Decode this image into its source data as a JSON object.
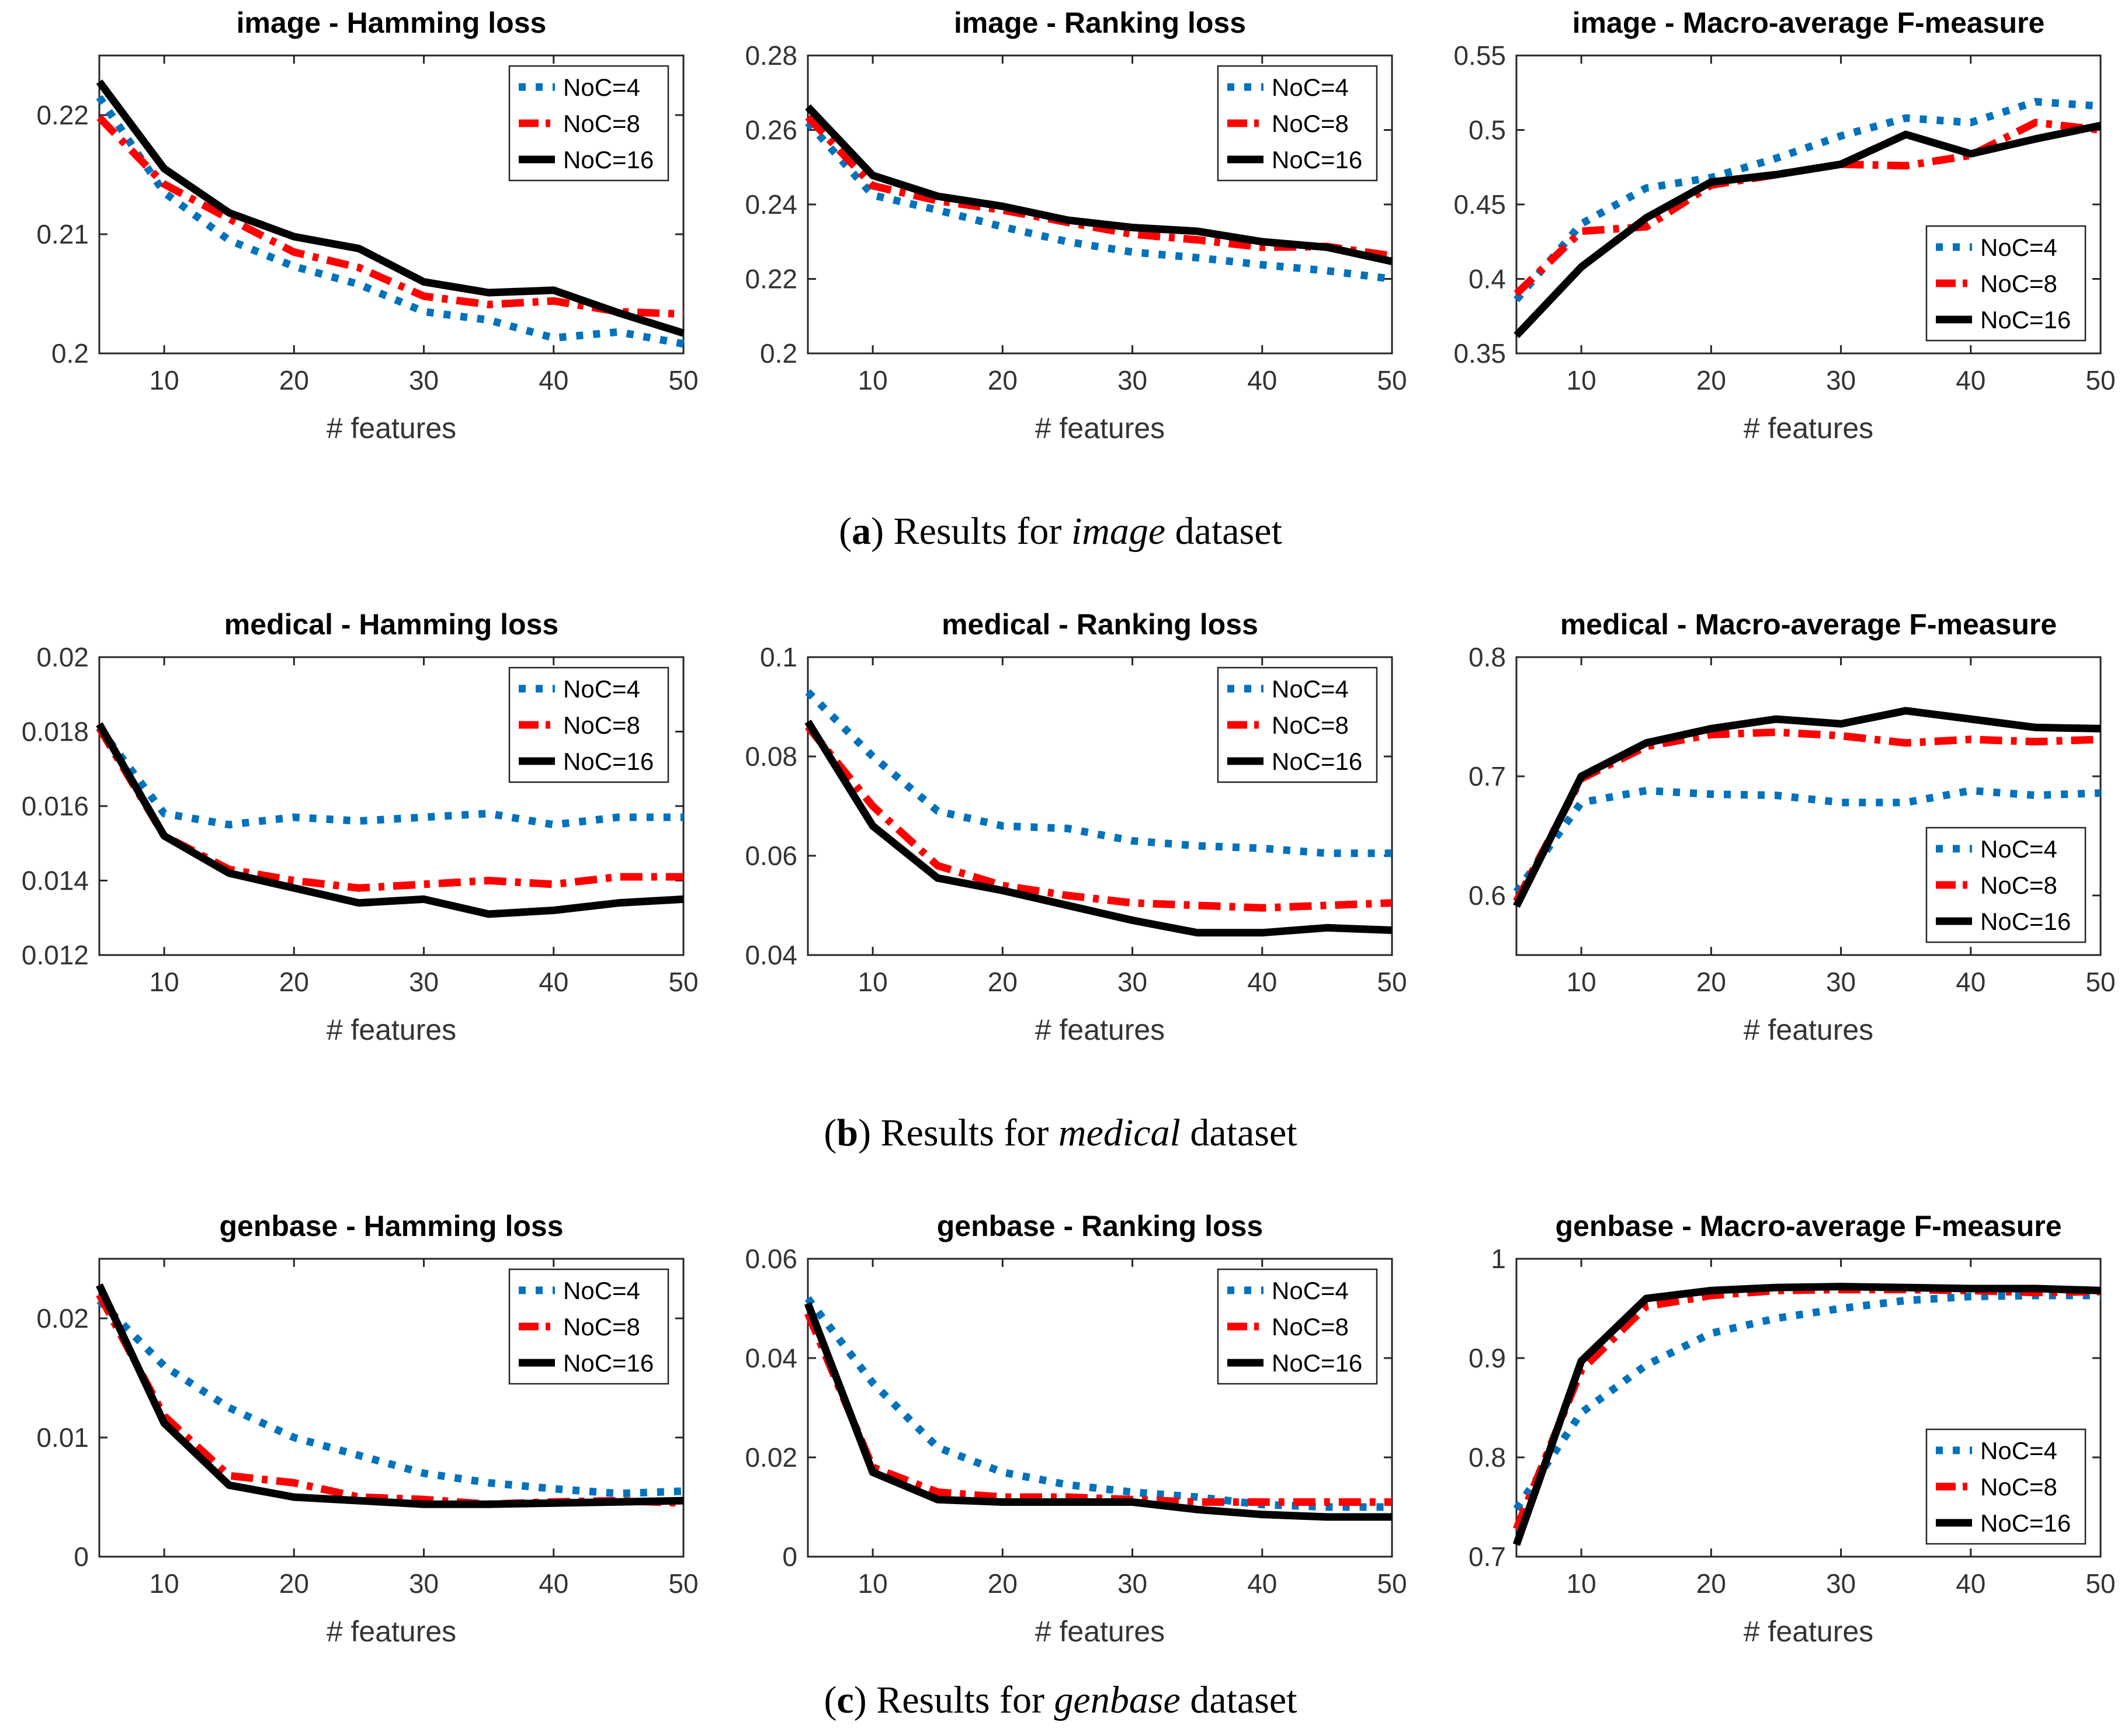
{
  "colors": {
    "noc4": "#0072BD",
    "noc8": "#FF0000",
    "noc16": "#000000",
    "axis": "#262626",
    "tick_text": "#333333",
    "title_text": "#000000",
    "background": "#FFFFFF"
  },
  "legend_labels": [
    "NoC=4",
    "NoC=8",
    "NoC=16"
  ],
  "captions": [
    {
      "open": "(",
      "letter": "a",
      "close": ") ",
      "body": "Results for ",
      "dataset": "image",
      "tail": " dataset"
    },
    {
      "open": "(",
      "letter": "b",
      "close": ") ",
      "body": "Results for ",
      "dataset": "medical",
      "tail": " dataset"
    },
    {
      "open": "(",
      "letter": "c",
      "close": ") ",
      "body": "Results for ",
      "dataset": "genbase",
      "tail": " dataset"
    }
  ],
  "chart_data": [
    {
      "id": "image-hamming-loss",
      "type": "line",
      "title": "image - Hamming loss",
      "xlabel": "# features",
      "x": [
        5,
        10,
        15,
        20,
        25,
        30,
        35,
        40,
        45,
        50
      ],
      "xlim": [
        5,
        50
      ],
      "xticks": [
        10,
        20,
        30,
        40,
        50
      ],
      "ylim": [
        0.2,
        0.225
      ],
      "yticks": [
        0.2,
        0.21,
        0.22
      ],
      "grid": false,
      "legend_pos": "top-right",
      "series": [
        {
          "name": "NoC=4",
          "style": "dotted",
          "color_key": "noc4",
          "values": [
            0.2215,
            0.2135,
            0.2095,
            0.2073,
            0.2058,
            0.2035,
            0.2028,
            0.2013,
            0.2018,
            0.2008
          ]
        },
        {
          "name": "NoC=8",
          "style": "dashdot",
          "color_key": "noc8",
          "values": [
            0.2198,
            0.2142,
            0.2113,
            0.2085,
            0.2072,
            0.2048,
            0.2041,
            0.2044,
            0.2035,
            0.2033
          ]
        },
        {
          "name": "NoC=16",
          "style": "solid",
          "color_key": "noc16",
          "values": [
            0.2228,
            0.2155,
            0.2118,
            0.2098,
            0.2088,
            0.206,
            0.2051,
            0.2053,
            0.2034,
            0.2017
          ]
        }
      ]
    },
    {
      "id": "image-ranking-loss",
      "type": "line",
      "title": "image - Ranking loss",
      "xlabel": "# features",
      "x": [
        5,
        10,
        15,
        20,
        25,
        30,
        35,
        40,
        45,
        50
      ],
      "xlim": [
        5,
        50
      ],
      "xticks": [
        10,
        20,
        30,
        40,
        50
      ],
      "ylim": [
        0.2,
        0.28
      ],
      "yticks": [
        0.2,
        0.22,
        0.24,
        0.26,
        0.28
      ],
      "grid": false,
      "legend_pos": "top-right",
      "series": [
        {
          "name": "NoC=4",
          "style": "dotted",
          "color_key": "noc4",
          "values": [
            0.262,
            0.2425,
            0.2385,
            0.234,
            0.23,
            0.2272,
            0.2257,
            0.2238,
            0.2222,
            0.22
          ]
        },
        {
          "name": "NoC=8",
          "style": "dashdot",
          "color_key": "noc8",
          "values": [
            0.2635,
            0.245,
            0.241,
            0.2385,
            0.2352,
            0.232,
            0.2305,
            0.2285,
            0.2287,
            0.2262
          ]
        },
        {
          "name": "NoC=16",
          "style": "solid",
          "color_key": "noc16",
          "values": [
            0.2662,
            0.2478,
            0.2422,
            0.2395,
            0.2358,
            0.2338,
            0.2328,
            0.23,
            0.2285,
            0.2247
          ]
        }
      ]
    },
    {
      "id": "image-macro-average-f-measure",
      "type": "line",
      "title": "image - Macro-average F-measure",
      "xlabel": "# features",
      "x": [
        5,
        10,
        15,
        20,
        25,
        30,
        35,
        40,
        45,
        50
      ],
      "xlim": [
        5,
        50
      ],
      "xticks": [
        10,
        20,
        30,
        40,
        50
      ],
      "ylim": [
        0.35,
        0.55
      ],
      "yticks": [
        0.35,
        0.4,
        0.45,
        0.5,
        0.55
      ],
      "grid": false,
      "legend_pos": "bottom-right",
      "series": [
        {
          "name": "NoC=4",
          "style": "dotted",
          "color_key": "noc4",
          "values": [
            0.386,
            0.437,
            0.461,
            0.468,
            0.481,
            0.496,
            0.508,
            0.505,
            0.519,
            0.516
          ]
        },
        {
          "name": "NoC=8",
          "style": "dashdot",
          "color_key": "noc8",
          "values": [
            0.39,
            0.432,
            0.435,
            0.463,
            0.47,
            0.477,
            0.476,
            0.483,
            0.505,
            0.5
          ]
        },
        {
          "name": "NoC=16",
          "style": "solid",
          "color_key": "noc16",
          "values": [
            0.362,
            0.408,
            0.441,
            0.465,
            0.47,
            0.477,
            0.497,
            0.484,
            0.494,
            0.503
          ]
        }
      ]
    },
    {
      "id": "medical-hamming-loss",
      "type": "line",
      "title": "medical - Hamming loss",
      "xlabel": "# features",
      "x": [
        5,
        10,
        15,
        20,
        25,
        30,
        35,
        40,
        45,
        50
      ],
      "xlim": [
        5,
        50
      ],
      "xticks": [
        10,
        20,
        30,
        40,
        50
      ],
      "ylim": [
        0.012,
        0.02
      ],
      "yticks": [
        0.012,
        0.014,
        0.016,
        0.018,
        0.02
      ],
      "grid": false,
      "legend_pos": "top-right",
      "series": [
        {
          "name": "NoC=4",
          "style": "dotted",
          "color_key": "noc4",
          "values": [
            0.0181,
            0.0158,
            0.0155,
            0.0157,
            0.0156,
            0.0157,
            0.0158,
            0.0155,
            0.0157,
            0.0157
          ]
        },
        {
          "name": "NoC=8",
          "style": "dashdot",
          "color_key": "noc8",
          "values": [
            0.0181,
            0.0152,
            0.0143,
            0.014,
            0.0138,
            0.0139,
            0.014,
            0.0139,
            0.0141,
            0.0141
          ]
        },
        {
          "name": "NoC=16",
          "style": "solid",
          "color_key": "noc16",
          "values": [
            0.0182,
            0.0152,
            0.0142,
            0.0138,
            0.0134,
            0.0135,
            0.0131,
            0.0132,
            0.0134,
            0.0135
          ]
        }
      ]
    },
    {
      "id": "medical-ranking-loss",
      "type": "line",
      "title": "medical - Ranking loss",
      "xlabel": "# features",
      "x": [
        5,
        10,
        15,
        20,
        25,
        30,
        35,
        40,
        45,
        50
      ],
      "xlim": [
        5,
        50
      ],
      "xticks": [
        10,
        20,
        30,
        40,
        50
      ],
      "ylim": [
        0.04,
        0.1
      ],
      "yticks": [
        0.04,
        0.06,
        0.08,
        0.1
      ],
      "grid": false,
      "legend_pos": "top-right",
      "series": [
        {
          "name": "NoC=4",
          "style": "dotted",
          "color_key": "noc4",
          "values": [
            0.093,
            0.08,
            0.069,
            0.066,
            0.0655,
            0.063,
            0.062,
            0.0615,
            0.0605,
            0.0605
          ]
        },
        {
          "name": "NoC=8",
          "style": "dashdot",
          "color_key": "noc8",
          "values": [
            0.086,
            0.07,
            0.058,
            0.054,
            0.052,
            0.0505,
            0.05,
            0.0495,
            0.05,
            0.0505
          ]
        },
        {
          "name": "NoC=16",
          "style": "solid",
          "color_key": "noc16",
          "values": [
            0.087,
            0.066,
            0.0555,
            0.053,
            0.05,
            0.047,
            0.0445,
            0.0445,
            0.0455,
            0.045
          ]
        }
      ]
    },
    {
      "id": "medical-macro-average-f-measure",
      "type": "line",
      "title": "medical - Macro-average F-measure",
      "xlabel": "# features",
      "x": [
        5,
        10,
        15,
        20,
        25,
        30,
        35,
        40,
        45,
        50
      ],
      "xlim": [
        5,
        50
      ],
      "xticks": [
        10,
        20,
        30,
        40,
        50
      ],
      "ylim": [
        0.55,
        0.8
      ],
      "yticks": [
        0.6,
        0.7,
        0.8
      ],
      "grid": false,
      "legend_pos": "bottom-right",
      "series": [
        {
          "name": "NoC=4",
          "style": "dotted",
          "color_key": "noc4",
          "values": [
            0.603,
            0.678,
            0.688,
            0.685,
            0.684,
            0.678,
            0.678,
            0.688,
            0.684,
            0.686
          ]
        },
        {
          "name": "NoC=8",
          "style": "dashdot",
          "color_key": "noc8",
          "values": [
            0.595,
            0.698,
            0.725,
            0.735,
            0.737,
            0.734,
            0.728,
            0.731,
            0.729,
            0.731
          ]
        },
        {
          "name": "NoC=16",
          "style": "solid",
          "color_key": "noc16",
          "values": [
            0.591,
            0.7,
            0.728,
            0.74,
            0.748,
            0.744,
            0.755,
            0.748,
            0.741,
            0.74
          ]
        }
      ]
    },
    {
      "id": "genbase-hamming-loss",
      "type": "line",
      "title": "genbase - Hamming loss",
      "xlabel": "# features",
      "x": [
        5,
        10,
        15,
        20,
        25,
        30,
        35,
        40,
        45,
        50
      ],
      "xlim": [
        5,
        50
      ],
      "xticks": [
        10,
        20,
        30,
        40,
        50
      ],
      "ylim": [
        0,
        0.025
      ],
      "yticks": [
        0,
        0.01,
        0.02
      ],
      "grid": false,
      "legend_pos": "top-right",
      "series": [
        {
          "name": "NoC=4",
          "style": "dotted",
          "color_key": "noc4",
          "values": [
            0.0215,
            0.016,
            0.0125,
            0.01,
            0.0085,
            0.007,
            0.0062,
            0.0057,
            0.0053,
            0.0055
          ]
        },
        {
          "name": "NoC=8",
          "style": "dashdot",
          "color_key": "noc8",
          "values": [
            0.022,
            0.0118,
            0.0068,
            0.0062,
            0.005,
            0.0048,
            0.0044,
            0.0046,
            0.0047,
            0.0045
          ]
        },
        {
          "name": "NoC=16",
          "style": "solid",
          "color_key": "noc16",
          "values": [
            0.0228,
            0.0112,
            0.006,
            0.005,
            0.0047,
            0.0044,
            0.0044,
            0.0045,
            0.0046,
            0.0047
          ]
        }
      ]
    },
    {
      "id": "genbase-ranking-loss",
      "type": "line",
      "title": "genbase - Ranking loss",
      "xlabel": "# features",
      "x": [
        5,
        10,
        15,
        20,
        25,
        30,
        35,
        40,
        45,
        50
      ],
      "xlim": [
        5,
        50
      ],
      "xticks": [
        10,
        20,
        30,
        40,
        50
      ],
      "ylim": [
        0,
        0.06
      ],
      "yticks": [
        0,
        0.02,
        0.04,
        0.06
      ],
      "grid": false,
      "legend_pos": "top-right",
      "series": [
        {
          "name": "NoC=4",
          "style": "dotted",
          "color_key": "noc4",
          "values": [
            0.052,
            0.035,
            0.022,
            0.017,
            0.0145,
            0.013,
            0.012,
            0.0105,
            0.01,
            0.01
          ]
        },
        {
          "name": "NoC=8",
          "style": "dashdot",
          "color_key": "noc8",
          "values": [
            0.049,
            0.018,
            0.013,
            0.012,
            0.012,
            0.0115,
            0.011,
            0.011,
            0.011,
            0.011
          ]
        },
        {
          "name": "NoC=16",
          "style": "solid",
          "color_key": "noc16",
          "values": [
            0.051,
            0.017,
            0.0115,
            0.011,
            0.011,
            0.011,
            0.0095,
            0.0085,
            0.008,
            0.008
          ]
        }
      ]
    },
    {
      "id": "genbase-macro-average-f-measure",
      "type": "line",
      "title": "genbase - Macro-average F-measure",
      "xlabel": "# features",
      "x": [
        5,
        10,
        15,
        20,
        25,
        30,
        35,
        40,
        45,
        50
      ],
      "xlim": [
        5,
        50
      ],
      "xticks": [
        10,
        20,
        30,
        40,
        50
      ],
      "ylim": [
        0.7,
        1
      ],
      "yticks": [
        0.7,
        0.8,
        0.9,
        1
      ],
      "grid": false,
      "legend_pos": "bottom-right",
      "series": [
        {
          "name": "NoC=4",
          "style": "dotted",
          "color_key": "noc4",
          "values": [
            0.748,
            0.845,
            0.893,
            0.925,
            0.94,
            0.95,
            0.958,
            0.962,
            0.963,
            0.963
          ]
        },
        {
          "name": "NoC=8",
          "style": "dashdot",
          "color_key": "noc8",
          "values": [
            0.728,
            0.888,
            0.952,
            0.963,
            0.968,
            0.969,
            0.969,
            0.968,
            0.966,
            0.967
          ]
        },
        {
          "name": "NoC=16",
          "style": "solid",
          "color_key": "noc16",
          "values": [
            0.712,
            0.897,
            0.96,
            0.968,
            0.971,
            0.972,
            0.971,
            0.97,
            0.97,
            0.968
          ]
        }
      ]
    }
  ]
}
